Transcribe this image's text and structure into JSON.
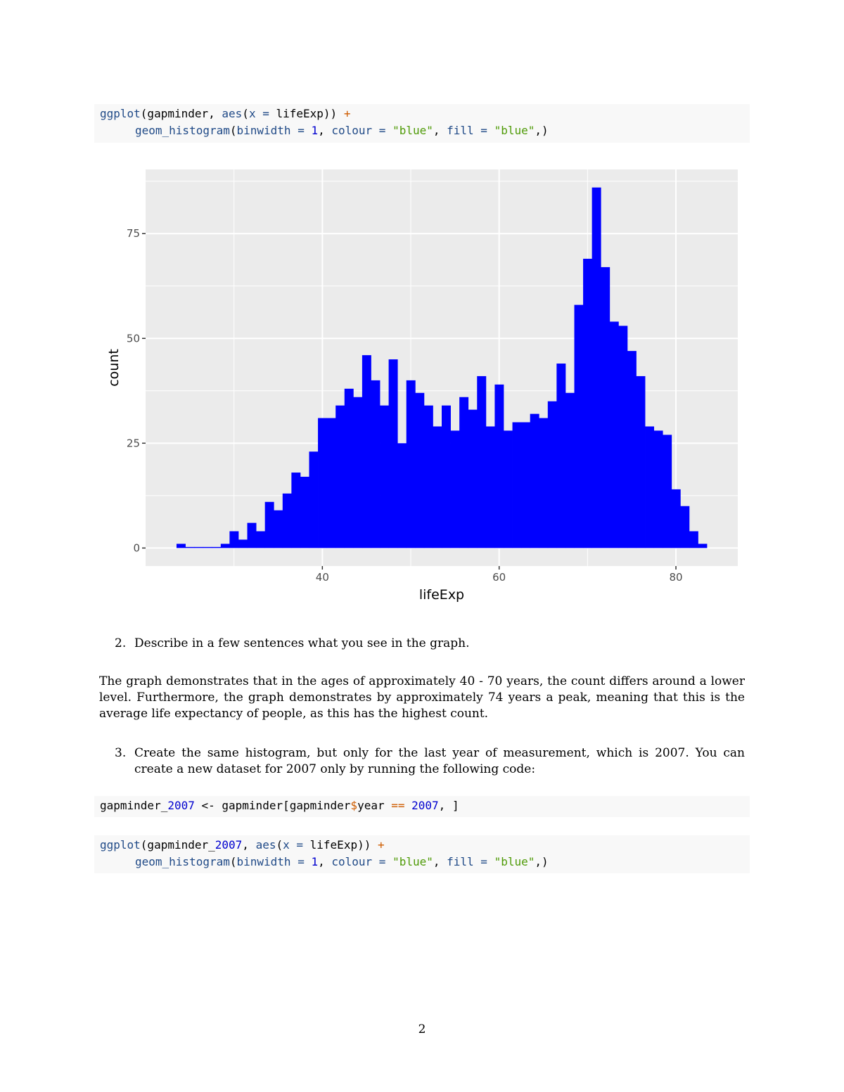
{
  "code1": {
    "line1": [
      {
        "t": "ggplot",
        "c": "fn"
      },
      {
        "t": "(gapminder, ",
        "c": "pl"
      },
      {
        "t": "aes",
        "c": "fn"
      },
      {
        "t": "(",
        "c": "pl"
      },
      {
        "t": "x =",
        "c": "fn"
      },
      {
        "t": " lifeExp)) ",
        "c": "pl"
      },
      {
        "t": "+",
        "c": "op"
      }
    ],
    "line2": [
      {
        "t": "geom_histogram",
        "c": "fn"
      },
      {
        "t": "(",
        "c": "pl"
      },
      {
        "t": "binwidth =",
        "c": "fn"
      },
      {
        "t": " ",
        "c": "pl"
      },
      {
        "t": "1",
        "c": "num"
      },
      {
        "t": ", ",
        "c": "pl"
      },
      {
        "t": "colour =",
        "c": "fn"
      },
      {
        "t": " ",
        "c": "pl"
      },
      {
        "t": "\"blue\"",
        "c": "str"
      },
      {
        "t": ", ",
        "c": "pl"
      },
      {
        "t": "fill =",
        "c": "fn"
      },
      {
        "t": " ",
        "c": "pl"
      },
      {
        "t": "\"blue\"",
        "c": "str"
      },
      {
        "t": ",)",
        "c": "pl"
      }
    ]
  },
  "chart_data": {
    "type": "bar",
    "subtype": "histogram",
    "binwidth": 1,
    "bin_start": 23.5,
    "values": [
      1,
      0,
      0,
      0,
      0,
      1,
      4,
      2,
      6,
      4,
      11,
      9,
      13,
      18,
      17,
      23,
      31,
      31,
      34,
      38,
      36,
      46,
      40,
      34,
      45,
      25,
      40,
      37,
      34,
      29,
      34,
      28,
      36,
      33,
      41,
      29,
      39,
      28,
      30,
      30,
      32,
      31,
      35,
      44,
      37,
      58,
      69,
      86,
      67,
      54,
      53,
      47,
      41,
      29,
      28,
      27,
      14,
      10,
      4,
      1
    ],
    "fill": "#0000ff",
    "xlabel": "lifeExp",
    "ylabel": "count",
    "xlim": [
      20,
      87
    ],
    "ylim": [
      -4.3,
      90.3
    ],
    "xticks": [
      40,
      60,
      80
    ],
    "yticks": [
      0,
      25,
      50,
      75
    ],
    "grid": true,
    "panel_background": "#ebebeb"
  },
  "item2": {
    "number": "2.",
    "text": "Describe in a few sentences what you see in the graph."
  },
  "answer": "The graph demonstrates that in the ages of approximately 40 - 70 years, the count differs around a lower level. Furthermore, the graph demonstrates by approximately 74 years a peak, meaning that this is the average life expectancy of people, as this has the highest count.",
  "item3": {
    "number": "3.",
    "text": "Create the same histogram, but only for the last year of measurement, which is 2007. You can create a new dataset for 2007 only by running the following code:"
  },
  "code2": {
    "line1": [
      {
        "t": "gapminder_",
        "c": "pl"
      },
      {
        "t": "2007",
        "c": "num"
      },
      {
        "t": " <- gapminder[gapminder",
        "c": "pl"
      },
      {
        "t": "$",
        "c": "op"
      },
      {
        "t": "year ",
        "c": "pl"
      },
      {
        "t": "==",
        "c": "op"
      },
      {
        "t": " ",
        "c": "pl"
      },
      {
        "t": "2007",
        "c": "num"
      },
      {
        "t": ", ]",
        "c": "pl"
      }
    ]
  },
  "code3": {
    "line1": [
      {
        "t": "ggplot",
        "c": "fn"
      },
      {
        "t": "(gapminder_",
        "c": "pl"
      },
      {
        "t": "2007",
        "c": "num"
      },
      {
        "t": ", ",
        "c": "pl"
      },
      {
        "t": "aes",
        "c": "fn"
      },
      {
        "t": "(",
        "c": "pl"
      },
      {
        "t": "x =",
        "c": "fn"
      },
      {
        "t": " lifeExp)) ",
        "c": "pl"
      },
      {
        "t": "+",
        "c": "op"
      }
    ],
    "line2": [
      {
        "t": "geom_histogram",
        "c": "fn"
      },
      {
        "t": "(",
        "c": "pl"
      },
      {
        "t": "binwidth =",
        "c": "fn"
      },
      {
        "t": " ",
        "c": "pl"
      },
      {
        "t": "1",
        "c": "num"
      },
      {
        "t": ", ",
        "c": "pl"
      },
      {
        "t": "colour =",
        "c": "fn"
      },
      {
        "t": " ",
        "c": "pl"
      },
      {
        "t": "\"blue\"",
        "c": "str"
      },
      {
        "t": ", ",
        "c": "pl"
      },
      {
        "t": "fill =",
        "c": "fn"
      },
      {
        "t": " ",
        "c": "pl"
      },
      {
        "t": "\"blue\"",
        "c": "str"
      },
      {
        "t": ",)",
        "c": "pl"
      }
    ]
  },
  "page_number": "2"
}
